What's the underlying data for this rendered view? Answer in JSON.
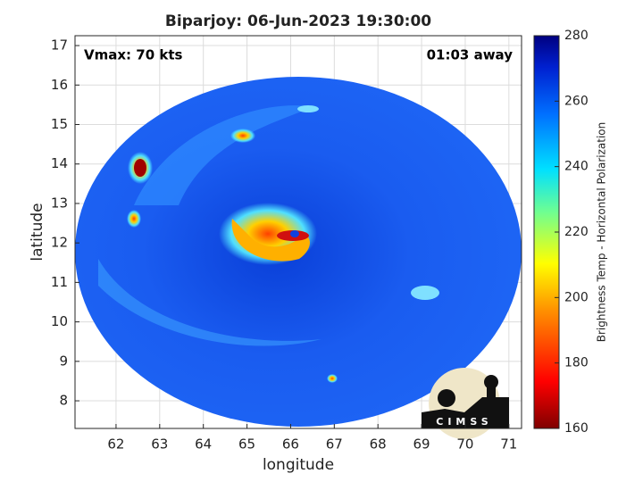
{
  "chart_data": {
    "type": "map",
    "title": "Biparjoy: 06-Jun-2023 19:30:00",
    "xlabel": "longitude",
    "ylabel": "latitude",
    "annotations": [
      "Vmax: 70 kts",
      "01:03 away"
    ],
    "logo": "CIMSS",
    "xlim": [
      61.06,
      71.29
    ],
    "xticks": [
      62,
      63,
      64,
      65,
      66,
      67,
      68,
      69,
      70,
      71
    ],
    "ylim": [
      7.3,
      17.25
    ],
    "yticks": [
      8,
      9,
      10,
      11,
      12,
      13,
      14,
      15,
      16,
      17
    ],
    "grid": true,
    "colorbar": {
      "label": "Brightness Temp - Horizontal Polarization",
      "lim": [
        160,
        280
      ],
      "ticks": [
        160,
        180,
        200,
        220,
        240,
        260,
        280
      ]
    }
  }
}
